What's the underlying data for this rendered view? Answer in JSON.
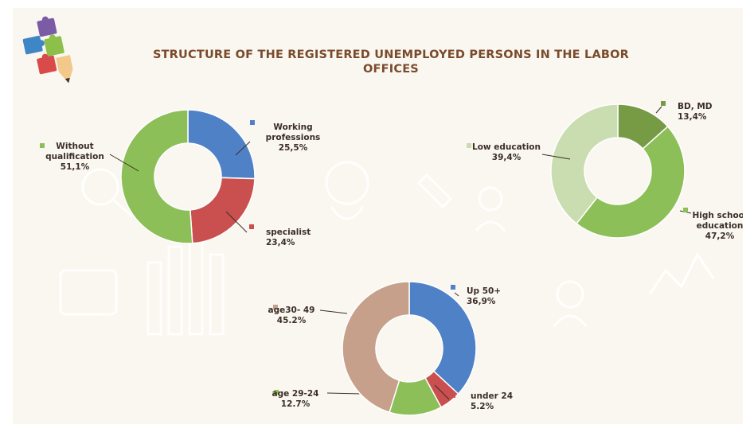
{
  "title_lines": [
    "STRUCTURE OF THE REGISTERED UNEMPLOYED PERSONS IN THE LABOR",
    "OFFICES"
  ],
  "logo": {
    "icon": "puzzle-pencil-icon",
    "colors": [
      "#7b5aa6",
      "#3f86c6",
      "#8cc04b",
      "#d94a4a",
      "#f2c98a"
    ]
  },
  "chart_data": [
    {
      "type": "pie",
      "subtype": "donut",
      "slices": [
        {
          "name": "Working professions",
          "label_lines": [
            "Working",
            "professions",
            "25,5%"
          ],
          "value": 25.5,
          "color": "#4f81c7"
        },
        {
          "name": "specialist",
          "label_lines": [
            "specialist",
            "23,4%"
          ],
          "value": 23.4,
          "color": "#c9504f"
        },
        {
          "name": "Without qualification",
          "label_lines": [
            "Without",
            "qualification",
            "51,1%"
          ],
          "value": 51.1,
          "color": "#8dbf59"
        }
      ]
    },
    {
      "type": "pie",
      "subtype": "donut",
      "slices": [
        {
          "name": "BD, MD",
          "label_lines": [
            "BD, MD",
            "13,4%"
          ],
          "value": 13.4,
          "color": "#779a45"
        },
        {
          "name": "High school education",
          "label_lines": [
            "High school",
            "education",
            "47,2%"
          ],
          "value": 47.2,
          "color": "#8dbf59"
        },
        {
          "name": "Low education",
          "label_lines": [
            "Low education",
            "39,4%"
          ],
          "value": 39.4,
          "color": "#c9ddb0"
        }
      ]
    },
    {
      "type": "pie",
      "subtype": "donut",
      "slices": [
        {
          "name": "Up 50+",
          "label_lines": [
            "Up 50+",
            "36,9%"
          ],
          "value": 36.9,
          "color": "#4f81c7"
        },
        {
          "name": "under 24",
          "label_lines": [
            "under 24",
            "5.2%"
          ],
          "value": 5.2,
          "color": "#c9504f"
        },
        {
          "name": "age 29-24",
          "label_lines": [
            "age 29-24",
            "12.7%"
          ],
          "value": 12.7,
          "color": "#8dbf59"
        },
        {
          "name": "age30- 49",
          "label_lines": [
            "age30-   49",
            "45.2%"
          ],
          "value": 45.2,
          "color": "#c6a08a"
        }
      ]
    }
  ]
}
